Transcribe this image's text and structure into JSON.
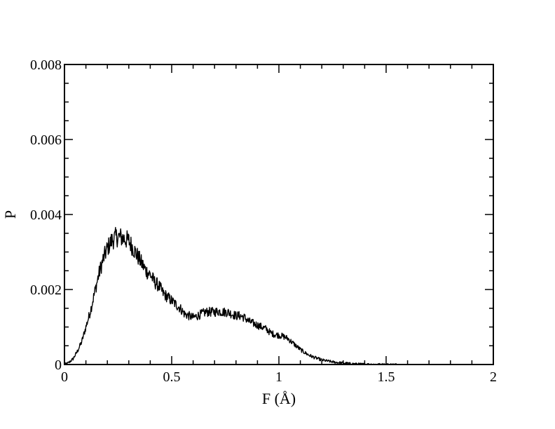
{
  "chart_data": {
    "type": "line",
    "title": "",
    "xlabel": "F (Å)",
    "ylabel": "P",
    "xlim": [
      0,
      2
    ],
    "ylim": [
      0,
      0.008
    ],
    "x_ticks": [
      0,
      0.5,
      1,
      1.5,
      2
    ],
    "x_tick_labels": [
      "0",
      "0.5",
      "1",
      "1.5",
      "2"
    ],
    "y_ticks": [
      0,
      0.002,
      0.004,
      0.006,
      0.008
    ],
    "y_tick_labels": [
      "0",
      "0.002",
      "0.004",
      "0.006",
      "0.008"
    ],
    "grid": false,
    "legend": "none",
    "line_color": "#000000",
    "series": [
      {
        "x": [
          0.0,
          0.02,
          0.04,
          0.06,
          0.08,
          0.1,
          0.12,
          0.14,
          0.16,
          0.18,
          0.2,
          0.22,
          0.24,
          0.26,
          0.28,
          0.3,
          0.32,
          0.34,
          0.36,
          0.38,
          0.4,
          0.42,
          0.44,
          0.46,
          0.48,
          0.5,
          0.52,
          0.54,
          0.56,
          0.58,
          0.6,
          0.62,
          0.64,
          0.66,
          0.68,
          0.7,
          0.72,
          0.74,
          0.76,
          0.78,
          0.8,
          0.82,
          0.84,
          0.86,
          0.88,
          0.9,
          0.92,
          0.94,
          0.96,
          0.98,
          1.0,
          1.02,
          1.04,
          1.06,
          1.08,
          1.1,
          1.12,
          1.14,
          1.16,
          1.18,
          1.2,
          1.22,
          1.24,
          1.26,
          1.28,
          1.3,
          1.32,
          1.34,
          1.36,
          1.38,
          1.4,
          1.42,
          1.44,
          1.46,
          1.48,
          1.5,
          1.52,
          1.54,
          1.56
        ],
        "y": [
          0.0,
          5e-05,
          0.00015,
          0.00035,
          0.0006,
          0.001,
          0.0014,
          0.0019,
          0.0024,
          0.0028,
          0.0031,
          0.0033,
          0.0034,
          0.0034,
          0.00335,
          0.0033,
          0.0031,
          0.0029,
          0.0027,
          0.0025,
          0.0024,
          0.0022,
          0.0021,
          0.0019,
          0.0018,
          0.0017,
          0.0016,
          0.0015,
          0.00135,
          0.0013,
          0.00125,
          0.0013,
          0.00135,
          0.0014,
          0.0014,
          0.0014,
          0.00142,
          0.0014,
          0.0014,
          0.00135,
          0.0013,
          0.0013,
          0.00125,
          0.00115,
          0.0011,
          0.00105,
          0.001,
          0.00095,
          0.00085,
          0.0008,
          0.00078,
          0.00075,
          0.0007,
          0.0006,
          0.0005,
          0.0004,
          0.00032,
          0.00025,
          0.0002,
          0.00016,
          0.00012,
          0.0001,
          8e-05,
          6e-05,
          5e-05,
          4e-05,
          3e-05,
          2e-05,
          1.5e-05,
          1e-05,
          8e-06,
          6e-06,
          4e-06,
          3e-06,
          2e-06,
          1.5e-06,
          1e-06,
          5e-07,
          0.0
        ]
      }
    ]
  }
}
